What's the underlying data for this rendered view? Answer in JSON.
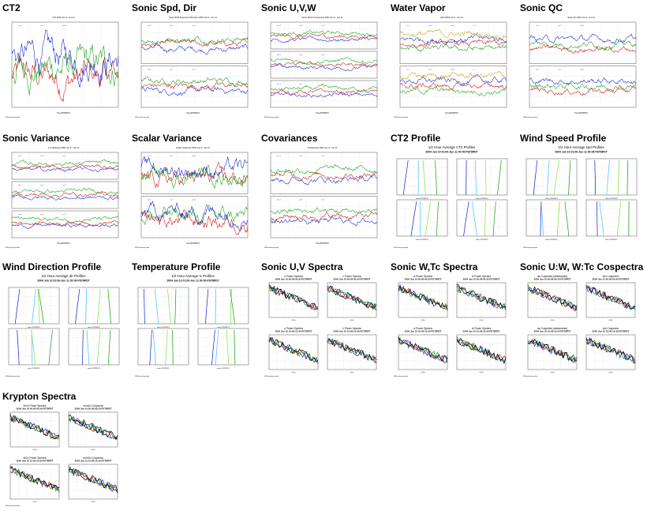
{
  "gallery": [
    {
      "title": "CT2",
      "kind": "ts1",
      "caption": "CT2 2004 Jun 9 - Jun 11",
      "colors": [
        "#d01010",
        "#10a010",
        "#1020d0"
      ]
    },
    {
      "title": "Sonic Spd, Dir",
      "kind": "ts2",
      "caption": "Sonic Wind Speed and Direction 2004 Jun 9 - Jun 11",
      "colors": [
        "#1020d0",
        "#d01010",
        "#10a010"
      ]
    },
    {
      "title": "Sonic U,V,W",
      "kind": "ts3",
      "caption": "Sonic Wind Components 2004 Jun 9 - Jun 11",
      "colors": [
        "#1020d0",
        "#d01010",
        "#10a010"
      ]
    },
    {
      "title": "Water Vapor",
      "kind": "ts2c",
      "caption": "H2O 2004 Jun 9 - Jun 11",
      "colors": [
        "#10a010",
        "#d01010",
        "#1020d0",
        "#c8a000"
      ]
    },
    {
      "title": "Sonic QC",
      "kind": "ts2q",
      "caption": "Sonic QC 2004 Jun 9 - Jun 11",
      "colors": [
        "#d01010",
        "#10a010",
        "#1020d0"
      ]
    },
    {
      "title": "Sonic Variance",
      "kind": "ts3",
      "caption": "u,w Variances 2004 Jun 9 - Jun 11",
      "colors": [
        "#1020d0",
        "#d01010",
        "#10a010"
      ]
    },
    {
      "title": "Scalar Variance",
      "kind": "ts2s",
      "caption": "Scalar Variances 2004 Jun 9 - Jun 11",
      "colors": [
        "#d01010",
        "#10a010",
        "#1020d0"
      ]
    },
    {
      "title": "Covariances",
      "kind": "ts2",
      "caption": "Covariances 2004 Jun 9 - Jun 11",
      "colors": [
        "#1020d0",
        "#d01010",
        "#10a010"
      ]
    },
    {
      "title": "CT2 Profile",
      "kind": "prof",
      "caption": "1/2 Hour Average CT2 Profiles",
      "subcaption": "2004 Jun 10 01:00-Jun 11 00:00 PST8PDT",
      "colors": [
        "#1020d0",
        "#40c0ff",
        "#80e040",
        "#10a010"
      ]
    },
    {
      "title": "Wind Speed Profile",
      "kind": "prof",
      "caption": "1/2 Hour Average spd Profiles",
      "subcaption": "2004 Jun 10 01:00-Jun 11 00:00 PST8PDT",
      "colors": [
        "#1020d0",
        "#40c0ff",
        "#80e040",
        "#10a010"
      ]
    },
    {
      "title": "Wind Direction Profile",
      "kind": "prof",
      "caption": "1/2 Hour Average dir Profiles",
      "subcaption": "2004 Jun 10 01:00-Jun 11 00:00 PST8PDT",
      "colors": [
        "#1020d0",
        "#40c0ff",
        "#80e040",
        "#10a010"
      ]
    },
    {
      "title": "Temperature Profile",
      "kind": "prof",
      "caption": "1/2 Hour Average tc Profiles",
      "subcaption": "2004 Jun 10 01:00-Jun 11 00:00 PST8PDT",
      "colors": [
        "#1020d0",
        "#40c0ff",
        "#80e040",
        "#10a010"
      ]
    },
    {
      "title": "Sonic U,V Spectra",
      "kind": "spec",
      "subtitles": [
        "u Power Spectra\n2004 Jun 10 00:00-00:30 PST8PDT",
        "v Power Spectra\n2004 Jun 10 00:00-00:30 PST8PDT",
        "u Power Spectra\n2004 Jun 10 12:00-12:30 PST8PDT",
        "v Power Spectra\n2004 Jun 10 12:00-12:30 PST8PDT"
      ],
      "colors": [
        "#d01010",
        "#1020d0",
        "#10a010",
        "#000000"
      ]
    },
    {
      "title": "Sonic W,Tc Spectra",
      "kind": "spec",
      "subtitles": [
        "w Power Spectra\n2004 Jun 10 00:00-00:30 PST8PDT",
        "tc Power Spectra\n2004 Jun 10 00:00-00:30 PST8PDT",
        "w Power Spectra\n2004 Jun 10 12:00-12:30 PST8PDT",
        "tc Power Spectra\n2004 Jun 10 12:00-12:30 PST8PDT"
      ],
      "colors": [
        "#d01010",
        "#1020d0",
        "#10a010",
        "#000000"
      ]
    },
    {
      "title": "Sonic U:W, W:Tc Cospectra",
      "kind": "spec",
      "subtitles": [
        "uw Cospectra (streamwise)\n2004 Jun 10 00:00-00:30 PST8PDT",
        "wtc Cospectra\n2004 Jun 10 00:00-00:30 PST8PDT",
        "uw Cospectra (streamwise)\n2004 Jun 10 12:00-12:30 PST8PDT",
        "wtc Cospectra\n2004 Jun 10 12:00-12:30 PST8PDT"
      ],
      "colors": [
        "#d01010",
        "#1020d0",
        "#10a010",
        "#000000"
      ]
    },
    {
      "title": "Krypton Spectra",
      "kind": "spec",
      "subtitles": [
        "kh2o Power Spectra\n2004 Jun 10 00:00-00:30 PST8PDT",
        "w.kh2o Cospectra\n2004 Jun 10 00:00-00:30 PST8PDT",
        "kh2o Power Spectra\n2004 Jun 10 12:00-12:30 PST8PDT",
        "w.kh2o Cospectra\n2004 Jun 10 12:00-12:30 PST8PDT"
      ],
      "colors": [
        "#d01010",
        "#1020d0",
        "#10a010",
        "#000000"
      ]
    }
  ]
}
